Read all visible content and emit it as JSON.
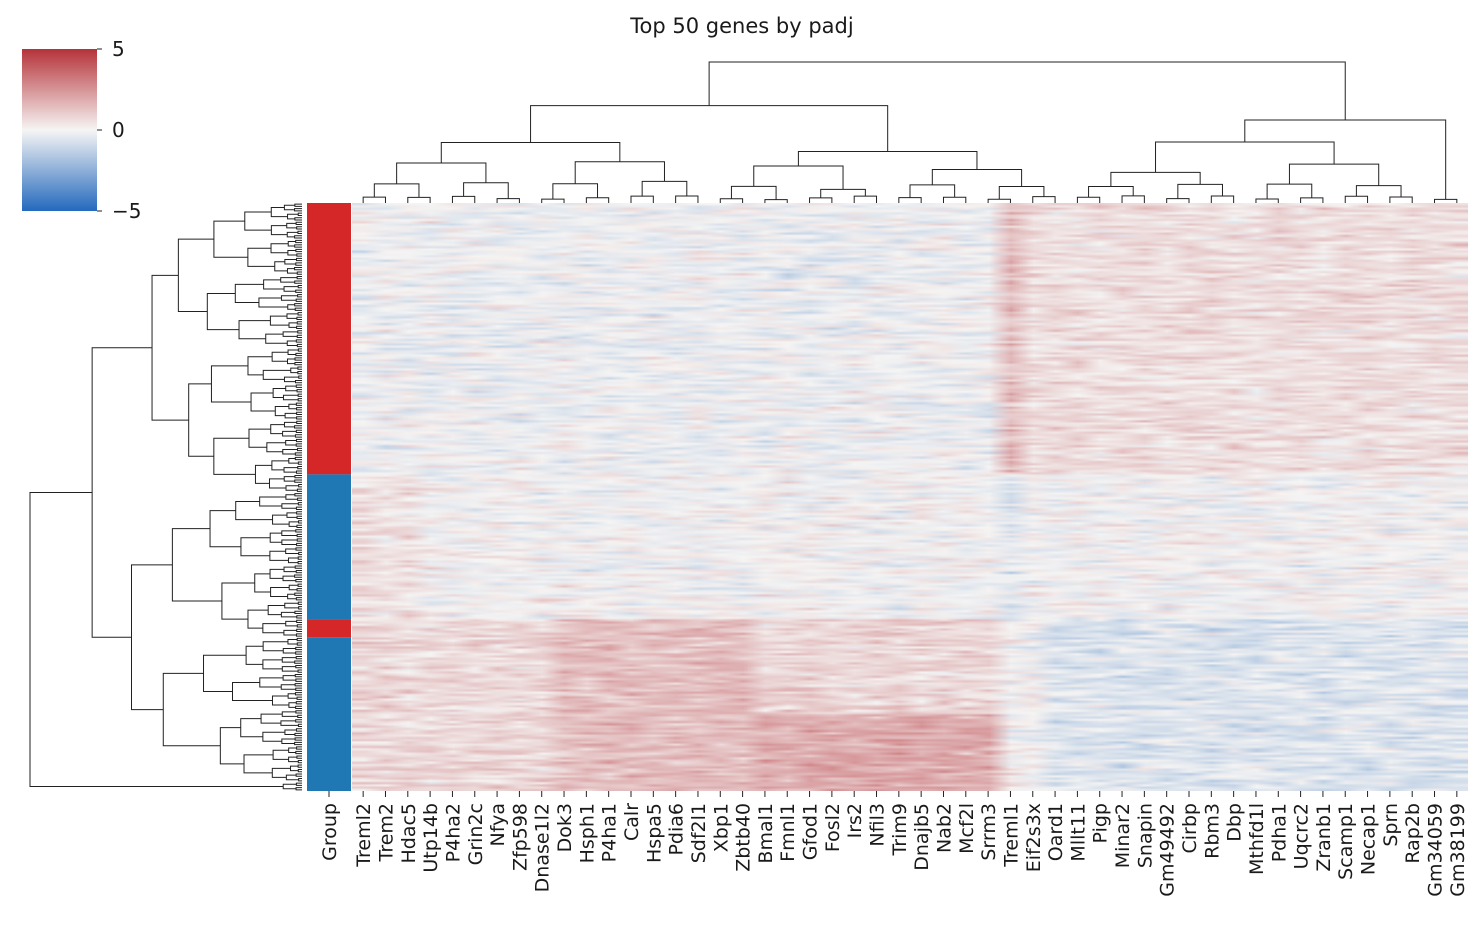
{
  "chart_data": {
    "type": "heatmap",
    "title": "Top 50 genes by padj",
    "colorbar": {
      "colormap": "vlag",
      "colors": [
        "#2369bd",
        "#f6f5f4",
        "#b5333a"
      ],
      "ticks": [
        5,
        0,
        -5
      ],
      "tick_labels": [
        "5",
        "0",
        "−5"
      ],
      "range": [
        -5,
        5
      ]
    },
    "row_annotation": {
      "label": "Group",
      "colors": {
        "A": "#d62728",
        "B": "#1f77b4"
      },
      "segments": [
        {
          "group": "A",
          "rows": 120
        },
        {
          "group": "B",
          "rows": 64
        },
        {
          "group": "A",
          "rows": 8
        },
        {
          "group": "B",
          "rows": 68
        }
      ]
    },
    "n_rows": 260,
    "genes": [
      "Treml2",
      "Trem2",
      "Hdac5",
      "Utp14b",
      "P4ha2",
      "Grin2c",
      "Nfya",
      "Zfp598",
      "Dnase1l2",
      "Dok3",
      "Hsph1",
      "P4ha1",
      "Calr",
      "Hspa5",
      "Pdia6",
      "Sdf2l1",
      "Xbp1",
      "Zbtb40",
      "Bmal1",
      "Fmnl1",
      "Gfod1",
      "Fosl2",
      "Irs2",
      "Nfil3",
      "Trim9",
      "Dnajb5",
      "Nab2",
      "Mcf2l",
      "Srrm3",
      "Treml1",
      "Eif2s3x",
      "Oard1",
      "Mllt11",
      "Pigp",
      "Minar2",
      "Snapin",
      "Gm49492",
      "Cirbp",
      "Rbm3",
      "Dbp",
      "Mthfd1l",
      "Pdha1",
      "Uqcrc2",
      "Zranb1",
      "Scamp1",
      "Necap1",
      "Sprn",
      "Rap2b",
      "Gm34059",
      "Gm38199"
    ],
    "value_range": [
      -5,
      5
    ],
    "note": ""
  }
}
